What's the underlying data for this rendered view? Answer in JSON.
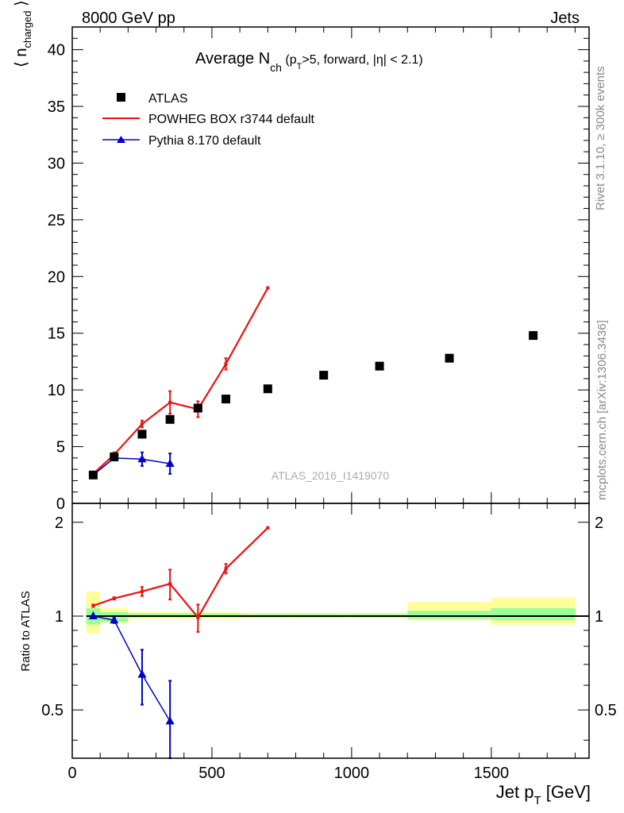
{
  "header": {
    "left": "8000 GeV pp",
    "right": "Jets"
  },
  "side_labels": {
    "rivet": "Rivet 3.1.10, ≥ 300k events",
    "mcplots": "mcplots.cern.ch [arXiv:1306.3436]"
  },
  "watermark": "ATLAS_2016_I1419070",
  "colors": {
    "atlas": "#000000",
    "powheg": "#ee1111",
    "pythia": "#0000cc",
    "band_inner": "#99ff99",
    "band_outer": "#ffff99"
  },
  "chart_data": [
    {
      "type": "scatter",
      "panel": "main",
      "title": "Average N_ch (p_T>5, forward, |η| < 2.1)",
      "title_parts": {
        "main": "Average N",
        "sub1": "ch",
        "rest": " (p",
        "sub2": "T",
        "end": ">5, forward, |η| < 2.1)"
      },
      "ylabel": "⟨ n_charged ⟩",
      "ylabel_parts": {
        "left": "⟨",
        "n": "n",
        "sub": "charged",
        "right": "⟩"
      },
      "xlim": [
        0,
        1850
      ],
      "ylim": [
        0,
        42
      ],
      "x_ticks": [
        0,
        500,
        1000,
        1500
      ],
      "y_ticks": [
        0,
        5,
        10,
        15,
        20,
        25,
        30,
        35,
        40
      ],
      "legend_position": "top-left",
      "series": [
        {
          "name": "ATLAS",
          "style": "square-markers",
          "x": [
            75,
            150,
            250,
            350,
            450,
            550,
            700,
            900,
            1100,
            1350,
            1650
          ],
          "y": [
            2.5,
            4.1,
            6.1,
            7.4,
            8.4,
            9.2,
            10.1,
            11.3,
            12.1,
            12.8,
            14.8
          ]
        },
        {
          "name": "POWHEG BOX r3744 default",
          "style": "line",
          "x": [
            75,
            150,
            250,
            350,
            450,
            550,
            700
          ],
          "y": [
            2.6,
            4.3,
            7.0,
            8.9,
            8.3,
            12.3,
            19.0
          ],
          "yerr": [
            0.1,
            0.2,
            0.3,
            1.0,
            0.7,
            0.5,
            0.0
          ]
        },
        {
          "name": "Pythia 8.170 default",
          "style": "line-triangles",
          "x": [
            75,
            150,
            250,
            350
          ],
          "y": [
            2.5,
            4.0,
            3.9,
            3.5
          ],
          "yerr": [
            0.05,
            0.2,
            0.6,
            0.9
          ]
        }
      ]
    },
    {
      "type": "line",
      "panel": "ratio",
      "ylabel": "Ratio to ATLAS",
      "xlabel": "Jet p_T [GeV]",
      "xlabel_parts": {
        "main": "Jet p",
        "sub": "T",
        "unit": " [GeV]"
      },
      "xlim": [
        0,
        1850
      ],
      "ylim": [
        0.35,
        2.3
      ],
      "x_ticks": [
        0,
        500,
        1000,
        1500
      ],
      "y_ticks": [
        0.5,
        1,
        2
      ],
      "bands": {
        "edges": [
          50,
          100,
          200,
          300,
          400,
          500,
          600,
          800,
          1000,
          1200,
          1500,
          1800
        ],
        "inner": [
          [
            0.94,
            1.06
          ],
          [
            0.96,
            1.03
          ],
          [
            0.99,
            1.02
          ],
          [
            0.99,
            1.02
          ],
          [
            0.99,
            1.02
          ],
          [
            0.99,
            1.02
          ],
          [
            0.99,
            1.015
          ],
          [
            0.99,
            1.015
          ],
          [
            0.99,
            1.015
          ],
          [
            0.98,
            1.04
          ],
          [
            0.97,
            1.06
          ]
        ],
        "outer": [
          [
            0.88,
            1.2
          ],
          [
            0.95,
            1.06
          ],
          [
            0.98,
            1.03
          ],
          [
            0.98,
            1.03
          ],
          [
            0.98,
            1.03
          ],
          [
            0.98,
            1.03
          ],
          [
            0.985,
            1.025
          ],
          [
            0.985,
            1.025
          ],
          [
            0.985,
            1.025
          ],
          [
            0.97,
            1.11
          ],
          [
            0.94,
            1.15
          ]
        ]
      },
      "series": [
        {
          "name": "POWHEG BOX r3744 default",
          "x": [
            75,
            150,
            250,
            350,
            450,
            550,
            700
          ],
          "y": [
            1.08,
            1.14,
            1.2,
            1.27,
            0.99,
            1.42,
            1.92
          ],
          "yerr": [
            0.01,
            0.01,
            0.04,
            0.14,
            0.1,
            0.05,
            0.0
          ]
        },
        {
          "name": "Pythia 8.170 default",
          "x": [
            75,
            150,
            250,
            350
          ],
          "y": [
            1.0,
            0.97,
            0.65,
            0.46
          ],
          "yerr": [
            0.01,
            0.02,
            0.13,
            0.16
          ]
        }
      ]
    }
  ]
}
